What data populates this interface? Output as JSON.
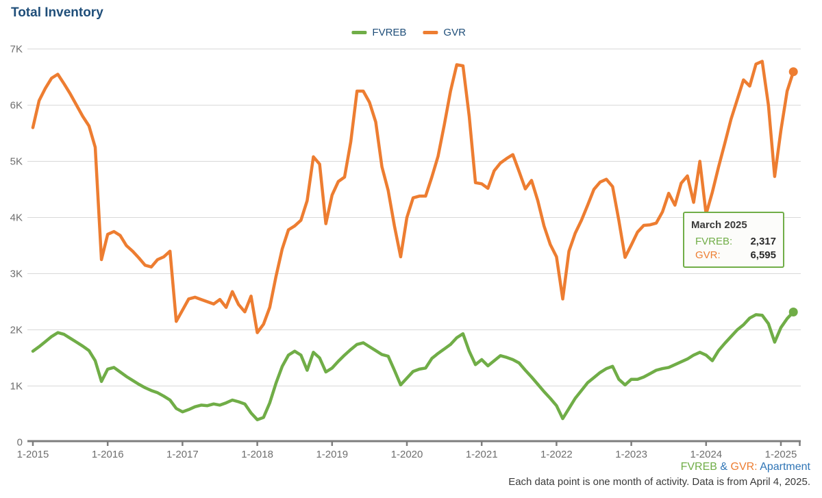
{
  "title": "Total Inventory",
  "colors": {
    "fvreb_green": "#70AD47",
    "gvr_orange": "#ED7D31",
    "navy": "#1F4E79",
    "link_blue": "#2E74B5",
    "axis_text": "#6E6E6E",
    "gridline": "#D8D8D8",
    "axis_line": "#7D7D7D"
  },
  "legend": {
    "items": [
      {
        "label": "FVREB",
        "color": "#70AD47"
      },
      {
        "label": "GVR",
        "color": "#ED7D31"
      }
    ]
  },
  "tooltip": {
    "title": "March 2025",
    "rows": [
      {
        "label": "FVREB:",
        "value": "2,317",
        "color": "#70AD47"
      },
      {
        "label": "GVR:",
        "value": "6,595",
        "color": "#ED7D31"
      }
    ]
  },
  "footnote": {
    "seg_fvreb": "FVREB",
    "seg_amp": " & ",
    "seg_gvr": "GVR:",
    "seg_type": " Apartment",
    "line2": "Each data point is one month of activity. Data is from April 4, 2025."
  },
  "chart_data": {
    "type": "line",
    "title": "Total Inventory",
    "x_monthly_from": "2015-01",
    "x_monthly_to": "2025-03",
    "x_ticks": [
      "1-2015",
      "1-2016",
      "1-2017",
      "1-2018",
      "1-2019",
      "1-2020",
      "1-2021",
      "1-2022",
      "1-2023",
      "1-2024",
      "1-2025"
    ],
    "y_ticks": [
      "0",
      "1K",
      "2K",
      "3K",
      "4K",
      "5K",
      "6K",
      "7K"
    ],
    "ylim": [
      0,
      7000
    ],
    "grid": "horizontal",
    "legend_position": "top-center",
    "end_markers": true,
    "series": [
      {
        "name": "FVREB",
        "color": "#70AD47",
        "values": [
          1620,
          1700,
          1790,
          1880,
          1950,
          1920,
          1850,
          1780,
          1710,
          1630,
          1450,
          1080,
          1300,
          1330,
          1250,
          1170,
          1100,
          1030,
          970,
          920,
          880,
          820,
          750,
          600,
          540,
          580,
          630,
          660,
          650,
          680,
          660,
          700,
          750,
          720,
          680,
          520,
          400,
          440,
          700,
          1050,
          1350,
          1550,
          1620,
          1550,
          1280,
          1600,
          1500,
          1250,
          1320,
          1440,
          1550,
          1650,
          1740,
          1770,
          1700,
          1630,
          1560,
          1530,
          1280,
          1020,
          1140,
          1260,
          1300,
          1320,
          1490,
          1580,
          1660,
          1740,
          1860,
          1930,
          1620,
          1380,
          1470,
          1360,
          1450,
          1540,
          1510,
          1470,
          1410,
          1280,
          1160,
          1030,
          900,
          780,
          650,
          420,
          600,
          780,
          920,
          1060,
          1150,
          1240,
          1310,
          1350,
          1120,
          1020,
          1120,
          1120,
          1160,
          1220,
          1280,
          1310,
          1330,
          1380,
          1430,
          1480,
          1550,
          1600,
          1550,
          1450,
          1630,
          1760,
          1880,
          2000,
          2090,
          2210,
          2270,
          2260,
          2110,
          1780,
          2040,
          2200,
          2317
        ]
      },
      {
        "name": "GVR",
        "color": "#ED7D31",
        "values": [
          5600,
          6080,
          6300,
          6480,
          6550,
          6380,
          6200,
          6000,
          5800,
          5630,
          5250,
          3250,
          3700,
          3750,
          3680,
          3500,
          3400,
          3280,
          3150,
          3120,
          3250,
          3300,
          3400,
          2150,
          2350,
          2550,
          2580,
          2540,
          2500,
          2460,
          2540,
          2400,
          2680,
          2450,
          2320,
          2600,
          1950,
          2100,
          2400,
          2950,
          3440,
          3780,
          3850,
          3950,
          4300,
          5080,
          4950,
          3890,
          4400,
          4640,
          4720,
          5350,
          6250,
          6250,
          6050,
          5700,
          4900,
          4480,
          3850,
          3300,
          4000,
          4350,
          4380,
          4380,
          4720,
          5090,
          5650,
          6250,
          6720,
          6700,
          5800,
          4620,
          4600,
          4520,
          4830,
          4970,
          5050,
          5120,
          4820,
          4510,
          4660,
          4300,
          3850,
          3520,
          3300,
          2550,
          3400,
          3720,
          3950,
          4220,
          4500,
          4630,
          4680,
          4550,
          3950,
          3290,
          3510,
          3740,
          3860,
          3870,
          3900,
          4100,
          4430,
          4220,
          4610,
          4740,
          4270,
          5000,
          4060,
          4450,
          4900,
          5320,
          5750,
          6100,
          6450,
          6340,
          6730,
          6780,
          6000,
          4730,
          5550,
          6250,
          6595
        ]
      }
    ]
  }
}
